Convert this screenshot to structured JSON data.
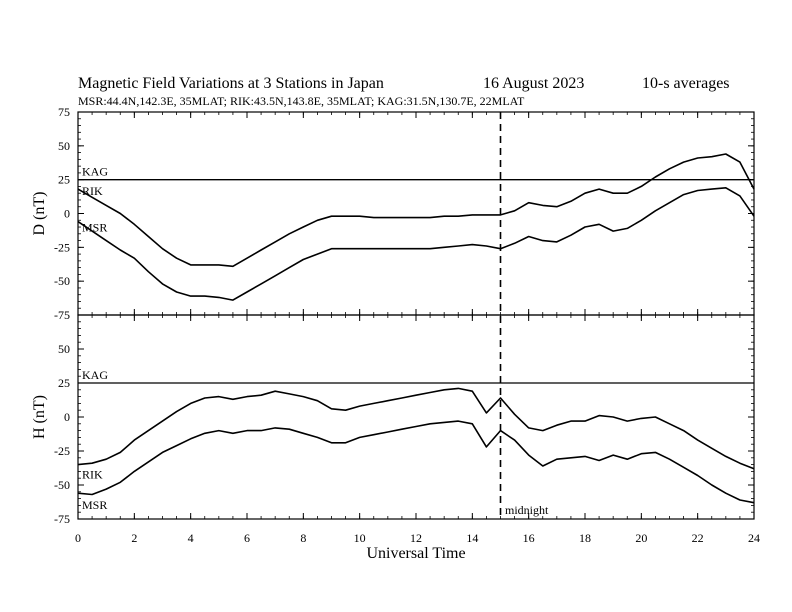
{
  "header": {
    "title": "Magnetic Field Variations at 3 Stations in Japan",
    "date": "16  August   2023",
    "averaging": "10-s averages",
    "stations": "MSR:44.4N,142.3E, 35MLAT;  RIK:43.5N,143.8E, 35MLAT;  KAG:31.5N,130.7E, 22MLAT"
  },
  "chart_data": {
    "type": "line",
    "xlabel": "Universal Time",
    "xlim": [
      0,
      24
    ],
    "xticks": [
      "0",
      "2",
      "4",
      "6",
      "8",
      "10",
      "12",
      "14",
      "16",
      "18",
      "20",
      "22",
      "24"
    ],
    "marker_line": {
      "x": 15,
      "style": "dashed",
      "label": "midnight"
    },
    "panels": [
      {
        "ylabel": "D (nT)",
        "ylim": [
          -75,
          75
        ],
        "yticks": [
          "75",
          "50",
          "25",
          "0",
          "-25",
          "-50",
          "-75"
        ],
        "series": [
          {
            "name": "KAG",
            "x": [
              0,
              24
            ],
            "y": [
              25,
              25
            ]
          },
          {
            "name": "RIK",
            "x": [
              0,
              0.5,
              1,
              1.5,
              2,
              2.5,
              3,
              3.5,
              4,
              4.5,
              5,
              5.5,
              6,
              6.5,
              7,
              7.5,
              8,
              8.5,
              9,
              9.5,
              10,
              10.5,
              11,
              11.5,
              12,
              12.5,
              13,
              13.5,
              14,
              14.5,
              15,
              15.5,
              16,
              16.5,
              17,
              17.5,
              18,
              18.5,
              19,
              19.5,
              20,
              20.5,
              21,
              21.5,
              22,
              22.5,
              23,
              23.5,
              24
            ],
            "y": [
              18,
              12,
              6,
              0,
              -8,
              -17,
              -26,
              -33,
              -38,
              -38,
              -38,
              -39,
              -33,
              -27,
              -21,
              -15,
              -10,
              -5,
              -2,
              -2,
              -2,
              -3,
              -3,
              -3,
              -3,
              -3,
              -2,
              -2,
              -1,
              -1,
              -1,
              2,
              8,
              6,
              5,
              9,
              15,
              18,
              15,
              15,
              20,
              27,
              33,
              38,
              41,
              42,
              44,
              38,
              18
            ]
          },
          {
            "name": "MSR",
            "x": [
              0,
              0.5,
              1,
              1.5,
              2,
              2.5,
              3,
              3.5,
              4,
              4.5,
              5,
              5.5,
              6,
              6.5,
              7,
              7.5,
              8,
              8.5,
              9,
              9.5,
              10,
              10.5,
              11,
              11.5,
              12,
              12.5,
              13,
              13.5,
              14,
              14.5,
              15,
              15.5,
              16,
              16.5,
              17,
              17.5,
              18,
              18.5,
              19,
              19.5,
              20,
              20.5,
              21,
              21.5,
              22,
              22.5,
              23,
              23.5,
              24
            ],
            "y": [
              -6,
              -13,
              -20,
              -27,
              -33,
              -43,
              -52,
              -58,
              -61,
              -61,
              -62,
              -64,
              -58,
              -52,
              -46,
              -40,
              -34,
              -30,
              -26,
              -26,
              -26,
              -26,
              -26,
              -26,
              -26,
              -26,
              -25,
              -24,
              -23,
              -24,
              -26,
              -22,
              -17,
              -20,
              -21,
              -16,
              -10,
              -8,
              -13,
              -11,
              -5,
              2,
              8,
              14,
              17,
              18,
              19,
              13,
              -2
            ]
          }
        ]
      },
      {
        "ylabel": "H (nT)",
        "ylim": [
          -75,
          75
        ],
        "yticks": [
          "75",
          "50",
          "25",
          "0",
          "-25",
          "-50",
          "-75"
        ],
        "series": [
          {
            "name": "KAG",
            "x": [
              0,
              24
            ],
            "y": [
              25,
              25
            ]
          },
          {
            "name": "RIK",
            "x": [
              0,
              0.5,
              1,
              1.5,
              2,
              2.5,
              3,
              3.5,
              4,
              4.5,
              5,
              5.5,
              6,
              6.5,
              7,
              7.5,
              8,
              8.5,
              9,
              9.5,
              10,
              10.5,
              11,
              11.5,
              12,
              12.5,
              13,
              13.5,
              14,
              14.5,
              15,
              15.5,
              16,
              16.5,
              17,
              17.5,
              18,
              18.5,
              19,
              19.5,
              20,
              20.5,
              21,
              21.5,
              22,
              22.5,
              23,
              23.5,
              24
            ],
            "y": [
              -35,
              -34,
              -31,
              -26,
              -17,
              -10,
              -3,
              4,
              10,
              14,
              15,
              13,
              15,
              16,
              19,
              17,
              15,
              12,
              6,
              5,
              8,
              10,
              12,
              14,
              16,
              18,
              20,
              21,
              19,
              3,
              14,
              2,
              -8,
              -10,
              -6,
              -3,
              -3,
              1,
              0,
              -3,
              -1,
              0,
              -5,
              -10,
              -17,
              -23,
              -29,
              -34,
              -38
            ]
          },
          {
            "name": "MSR",
            "x": [
              0,
              0.5,
              1,
              1.5,
              2,
              2.5,
              3,
              3.5,
              4,
              4.5,
              5,
              5.5,
              6,
              6.5,
              7,
              7.5,
              8,
              8.5,
              9,
              9.5,
              10,
              10.5,
              11,
              11.5,
              12,
              12.5,
              13,
              13.5,
              14,
              14.5,
              15,
              15.5,
              16,
              16.5,
              17,
              17.5,
              18,
              18.5,
              19,
              19.5,
              20,
              20.5,
              21,
              21.5,
              22,
              22.5,
              23,
              23.5,
              24
            ],
            "y": [
              -56,
              -57,
              -53,
              -48,
              -40,
              -33,
              -26,
              -21,
              -16,
              -12,
              -10,
              -12,
              -10,
              -10,
              -8,
              -9,
              -12,
              -15,
              -19,
              -19,
              -15,
              -13,
              -11,
              -9,
              -7,
              -5,
              -4,
              -3,
              -5,
              -22,
              -10,
              -17,
              -28,
              -36,
              -31,
              -30,
              -29,
              -32,
              -28,
              -31,
              -27,
              -26,
              -31,
              -37,
              -43,
              -50,
              -56,
              -61,
              -63
            ]
          }
        ]
      }
    ]
  }
}
